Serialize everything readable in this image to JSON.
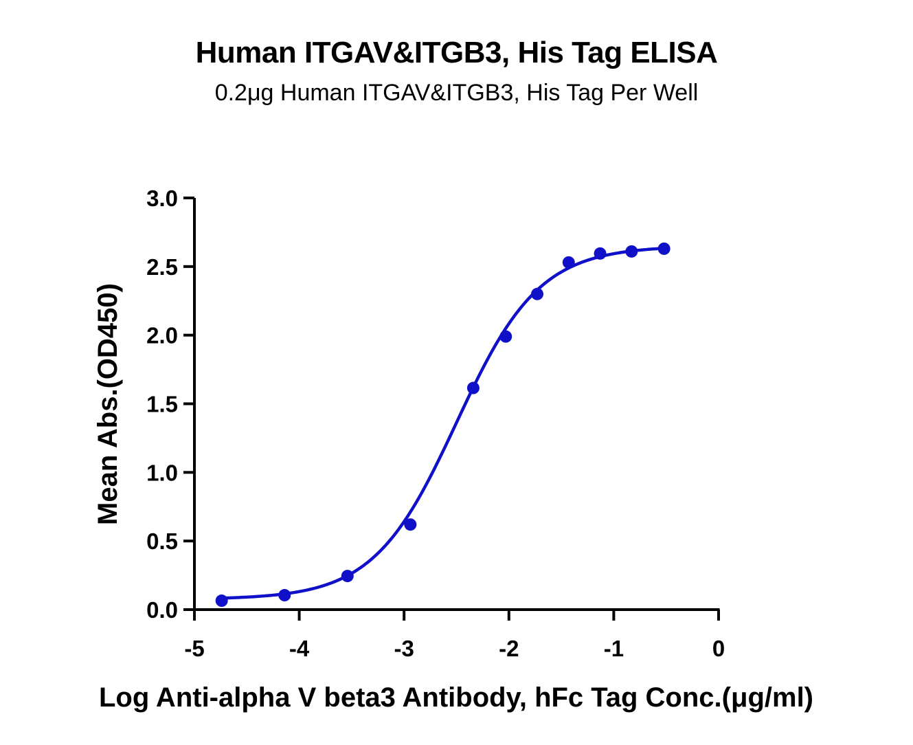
{
  "chart_data": {
    "type": "scatter",
    "title": "Human ITGAV&ITGB3, His Tag ELISA",
    "subtitle": "0.2μg Human ITGAV&ITGB3, His Tag Per Well",
    "xlabel": "Log Anti-alpha V beta3 Antibody, hFc Tag Conc.(μg/ml)",
    "ylabel": "Mean Abs.(OD450)",
    "xlim": [
      -5,
      0
    ],
    "ylim": [
      0,
      3.0
    ],
    "x_ticks": [
      "-5",
      "-4",
      "-3",
      "-2",
      "-1",
      "0"
    ],
    "y_ticks": [
      "0.0",
      "0.5",
      "1.0",
      "1.5",
      "2.0",
      "2.5",
      "3.0"
    ],
    "grid": false,
    "series": [
      {
        "x": [
          -4.74,
          -4.14,
          -3.54,
          -2.94,
          -2.34,
          -2.03,
          -1.73,
          -1.43,
          -1.13,
          -0.83,
          -0.52
        ],
        "y": [
          0.065,
          0.105,
          0.245,
          0.62,
          1.615,
          1.99,
          2.3,
          2.53,
          2.595,
          2.61,
          2.63
        ],
        "color": "#1010c8",
        "fit": "sigmoidal 4PL curve"
      }
    ],
    "fit_curve": {
      "bottom": 0.075,
      "top": 2.65,
      "log_ec50": -2.5,
      "hill_slope": 1.1
    }
  }
}
